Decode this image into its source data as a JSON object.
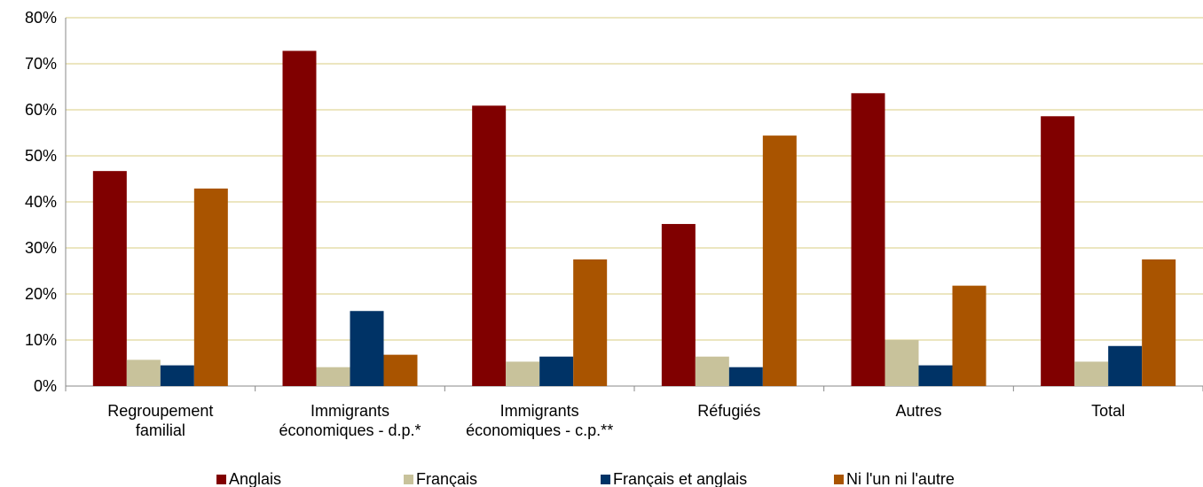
{
  "chart_data": {
    "type": "bar",
    "categories": [
      [
        "Regroupement",
        "familial"
      ],
      [
        "Immigrants",
        "économiques - d.p.*"
      ],
      [
        "Immigrants",
        "économiques - c.p.**"
      ],
      [
        "Réfugiés"
      ],
      [
        "Autres"
      ],
      [
        "Total"
      ]
    ],
    "series": [
      {
        "name": "Anglais",
        "color": "#800000",
        "values": [
          46.7,
          72.8,
          60.9,
          35.2,
          63.6,
          58.6
        ]
      },
      {
        "name": "Français",
        "color": "#C8C29B",
        "values": [
          5.7,
          4.1,
          5.3,
          6.4,
          10.0,
          5.3
        ]
      },
      {
        "name": "Français et anglais",
        "color": "#003366",
        "values": [
          4.5,
          16.3,
          6.4,
          4.1,
          4.5,
          8.7
        ]
      },
      {
        "name": "Ni l'un ni l'autre",
        "color": "#A95400",
        "values": [
          42.9,
          6.8,
          27.5,
          54.4,
          21.8,
          27.5
        ]
      }
    ],
    "ylim": [
      0,
      80
    ],
    "yticks": [
      "0%",
      "10%",
      "20%",
      "30%",
      "40%",
      "50%",
      "60%",
      "70%",
      "80%"
    ],
    "grid": true,
    "gridline_color": "#D8CC80",
    "legend_position": "bottom"
  }
}
